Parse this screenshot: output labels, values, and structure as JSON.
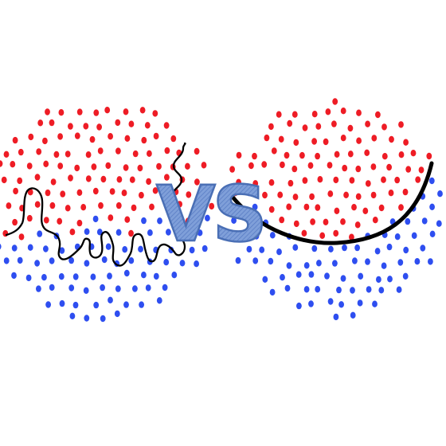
{
  "vs_label": "VS",
  "colors": {
    "class_a": "#ee1c25",
    "class_b": "#2e4ef0",
    "boundary": "#000000",
    "vs_fill": "#6d90cf",
    "vs_stroke": "#4a6fb5"
  },
  "panels": [
    {
      "name": "overfit-panel",
      "boundary_style": "wiggly"
    },
    {
      "name": "smooth-panel",
      "boundary_style": "smooth-arc"
    }
  ]
}
